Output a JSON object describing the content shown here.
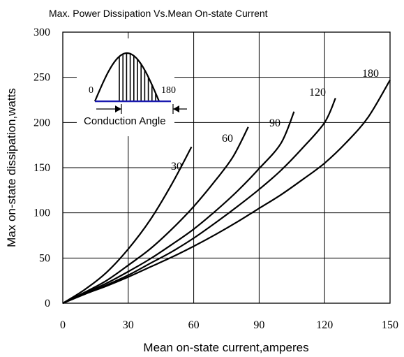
{
  "chart_data": {
    "type": "line",
    "title": "Max. Power Dissipation Vs.Mean On-state Current",
    "xlabel": "Mean on-state current,amperes",
    "ylabel": "Max on-state dissipation,watts",
    "xlim": [
      0,
      150
    ],
    "ylim": [
      0,
      300
    ],
    "x_ticks": [
      "0",
      "30",
      "60",
      "90",
      "120",
      "150"
    ],
    "y_ticks": [
      "0",
      "50",
      "100",
      "150",
      "200",
      "250",
      "300"
    ],
    "grid": true,
    "series": [
      {
        "name": "30",
        "x": [
          0,
          10,
          20,
          30,
          40,
          50,
          59
        ],
        "y": [
          0,
          15,
          34,
          60,
          92,
          132,
          173
        ]
      },
      {
        "name": "60",
        "x": [
          0,
          10,
          20,
          30,
          40,
          50,
          60,
          70,
          78,
          85
        ],
        "y": [
          0,
          12,
          25,
          42,
          60,
          82,
          107,
          136,
          162,
          195
        ]
      },
      {
        "name": "90",
        "x": [
          0,
          10,
          20,
          30,
          40,
          50,
          60,
          70,
          80,
          90,
          100,
          106
        ],
        "y": [
          0,
          11,
          22,
          35,
          49,
          65,
          82,
          102,
          124,
          149,
          177,
          212
        ]
      },
      {
        "name": "120",
        "x": [
          0,
          10,
          20,
          30,
          40,
          50,
          60,
          70,
          80,
          90,
          100,
          110,
          120,
          125
        ],
        "y": [
          0,
          10,
          20,
          31,
          44,
          57,
          72,
          89,
          107,
          126,
          147,
          172,
          200,
          227
        ]
      },
      {
        "name": "180",
        "x": [
          0,
          10,
          20,
          30,
          40,
          50,
          60,
          70,
          80,
          90,
          100,
          110,
          120,
          130,
          140,
          150
        ],
        "y": [
          0,
          10,
          19,
          29,
          40,
          51,
          63,
          76,
          90,
          105,
          120,
          137,
          155,
          178,
          206,
          247
        ]
      }
    ],
    "inset": {
      "start_label": "0",
      "end_label": "180",
      "caption": "Conduction Angle"
    }
  }
}
